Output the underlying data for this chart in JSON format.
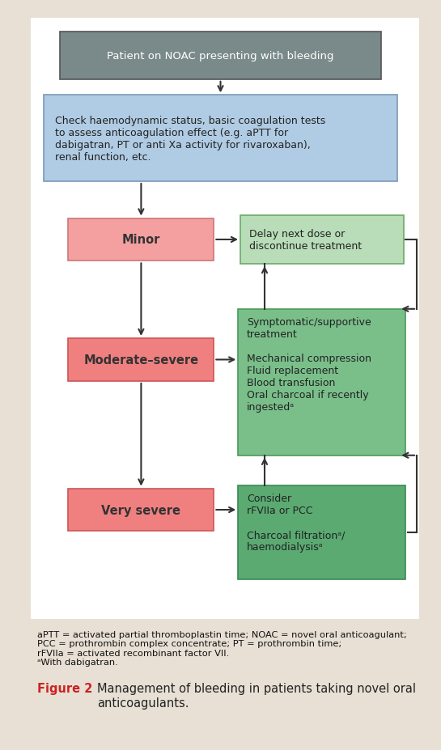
{
  "bg_color": "#e8e0d5",
  "chart_bg": "#ffffff",
  "title_box": {
    "text": "Patient on NOAC presenting with bleeding",
    "facecolor": "#7a8a8a",
    "edgecolor": "#555555",
    "textcolor": "#ffffff",
    "fontsize": 9.5,
    "fontweight": "normal"
  },
  "check_box": {
    "text": "Check haemodynamic status, basic coagulation tests\nto assess anticoagulation effect (e.g. aPTT for\ndabigatran, PT or anti Xa activity for rivaroxaban),\nrenal function, etc.",
    "facecolor": "#b0cce4",
    "edgecolor": "#7a9ab8",
    "textcolor": "#222222",
    "fontsize": 9,
    "fontweight": "normal"
  },
  "minor_box": {
    "text": "Minor",
    "facecolor": "#f4a0a0",
    "edgecolor": "#cc7777",
    "textcolor": "#333333",
    "fontsize": 10.5,
    "fontweight": "bold"
  },
  "delay_box": {
    "text": "Delay next dose or\ndiscontinue treatment",
    "facecolor": "#b8ddb8",
    "edgecolor": "#6aaa6a",
    "textcolor": "#222222",
    "fontsize": 9,
    "fontweight": "normal"
  },
  "moderate_box": {
    "text": "Moderate–severe",
    "facecolor": "#f08080",
    "edgecolor": "#cc5555",
    "textcolor": "#333333",
    "fontsize": 10.5,
    "fontweight": "bold"
  },
  "supportive_box": {
    "text": "Symptomatic/supportive\ntreatment\n\nMechanical compression\nFluid replacement\nBlood transfusion\nOral charcoal if recently\ningestedᵃ",
    "facecolor": "#7abf8a",
    "edgecolor": "#4a9a5a",
    "textcolor": "#222222",
    "fontsize": 9,
    "fontweight": "normal"
  },
  "verysevere_box": {
    "text": "Very severe",
    "facecolor": "#f08080",
    "edgecolor": "#cc5555",
    "textcolor": "#333333",
    "fontsize": 10.5,
    "fontweight": "bold"
  },
  "consider_box": {
    "text": "Consider\nrFVIIa or PCC\n\nCharcoal filtrationᵃ/\nhaemodialysisᵃ",
    "facecolor": "#5aaa72",
    "edgecolor": "#3a8a52",
    "textcolor": "#222222",
    "fontsize": 9,
    "fontweight": "normal"
  },
  "arrow_color": "#333333",
  "footnote_text": "aPTT = activated partial thromboplastin time; NOAC = novel oral anticoagulant;\nPCC = prothrombin complex concentrate; PT = prothrombin time;\nrFVIIa = activated recombinant factor VII.\nᵃWith dabigatran.",
  "footnote_fontsize": 8.2,
  "figure_label": "Figure 2",
  "figure_caption": "Management of bleeding in patients taking novel oral\nanticoagulants.",
  "figure_fontsize": 10.5,
  "figure_label_color": "#cc2222"
}
